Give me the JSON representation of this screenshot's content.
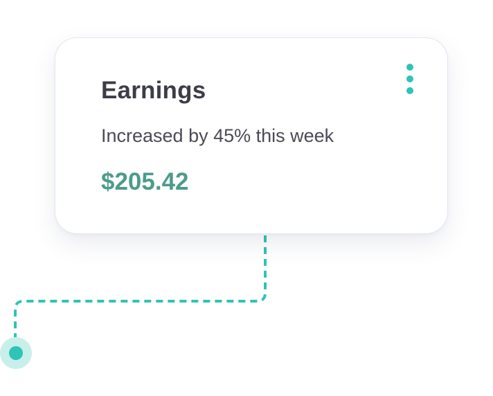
{
  "card": {
    "title": "Earnings",
    "subtitle": "Increased by 45% this week",
    "amount": "$205.42",
    "menu_icon": "more-vertical-icon"
  },
  "colors": {
    "accent": "#2ec4b6",
    "accent_light": "#c9efeb",
    "amount": "#4d9b8b",
    "title": "#3d3d48",
    "subtitle": "#4a4a55",
    "card_border": "#e3e6f4"
  }
}
